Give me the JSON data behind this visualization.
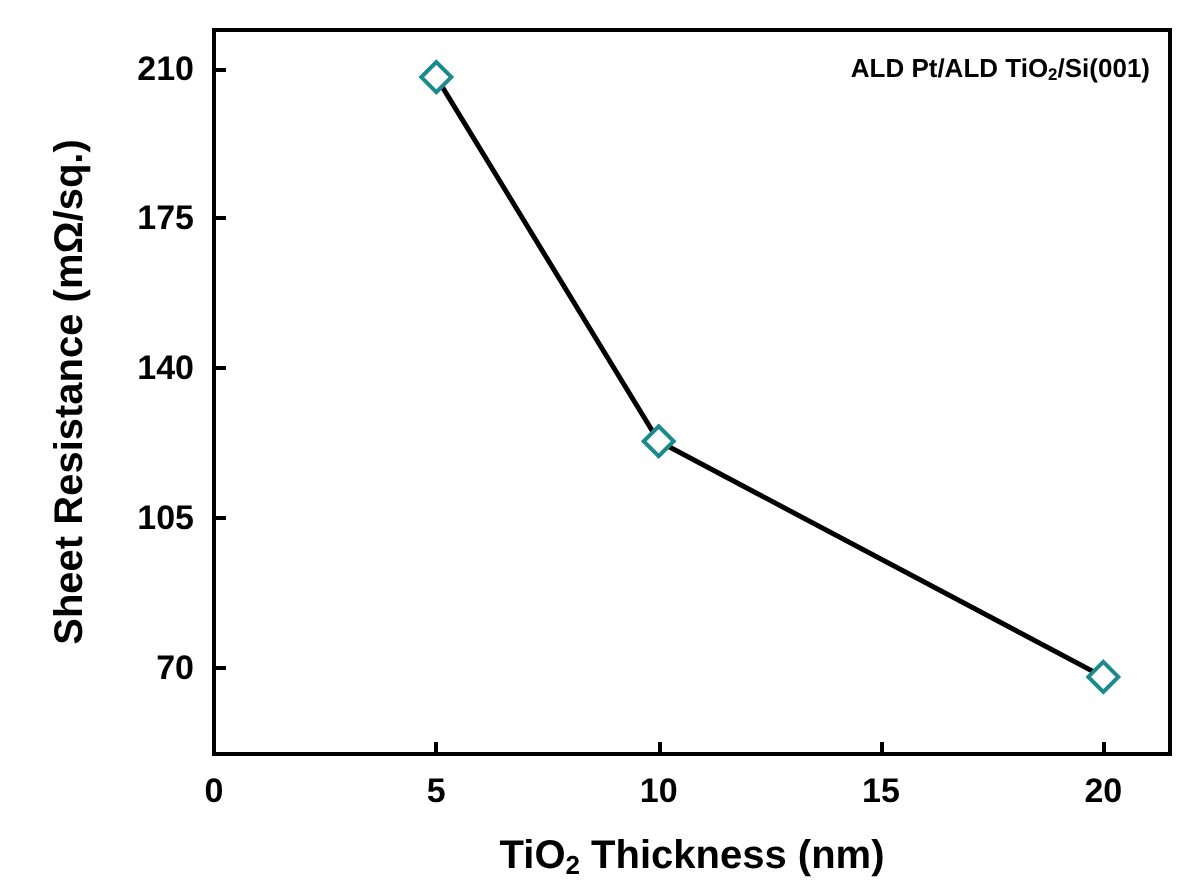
{
  "chart_data": {
    "type": "line",
    "xlabel": "TiO$_{2}$ Thickness (nm)",
    "ylabel": "Sheet Resistance (mΩ/sq.)",
    "annotations": [
      "ALD Pt/ALD TiO$_{2}$/Si(001)"
    ],
    "x": [
      5,
      10,
      20
    ],
    "series": [
      {
        "color": "#000000",
        "colors": [
          "#1a8a8a",
          "#1a8a8a",
          "#1a8a8a"
        ],
        "values": [
          208,
          123,
          68
        ]
      }
    ],
    "xlim": [
      0,
      21.5
    ],
    "xticks": [
      0,
      5,
      10,
      15,
      20
    ],
    "ylim": [
      50,
      219
    ],
    "yticks": [
      70,
      105,
      140,
      175,
      210
    ],
    "marker": "diamond",
    "line_style": "solid"
  }
}
